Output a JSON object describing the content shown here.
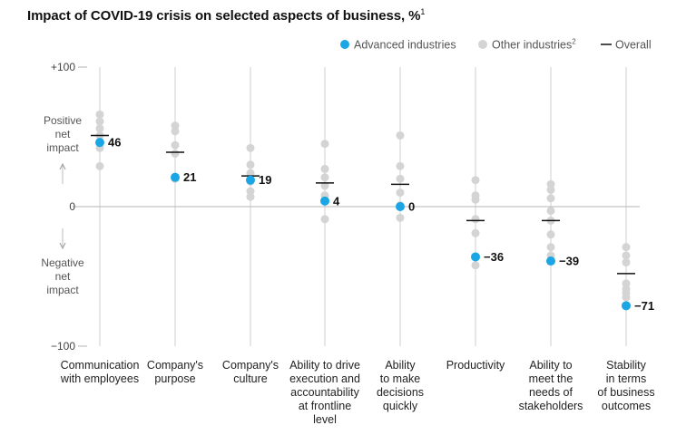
{
  "chart_data": {
    "type": "scatter",
    "title": "Impact of COVID-19 crisis on selected aspects of business, %",
    "title_note": "1",
    "legend": [
      {
        "label": "Advanced industries",
        "color": "#1aa6e4",
        "marker": "dot"
      },
      {
        "label": "Other industries",
        "note": "2",
        "color": "#d4d4d4",
        "marker": "dot"
      },
      {
        "label": "Overall",
        "color": "#111111",
        "marker": "line"
      }
    ],
    "legend_position": "top-right",
    "y_ticks": [
      {
        "value": 100,
        "label": "+100"
      },
      {
        "value": 0,
        "label": "0"
      },
      {
        "value": -100,
        "label": "−100"
      }
    ],
    "ylim": [
      -100,
      100
    ],
    "y_annotation_positive": [
      "Positive",
      "net",
      "impact"
    ],
    "y_annotation_negative": [
      "Negative",
      "net",
      "impact"
    ],
    "grid": "vertical category lines and zero baseline",
    "categories": [
      {
        "label": [
          "Communication",
          "with employees"
        ],
        "advanced": 46,
        "advanced_label": "46",
        "overall": 51,
        "other": [
          66,
          61,
          56,
          51,
          42,
          29
        ]
      },
      {
        "label": [
          "Company's",
          "purpose"
        ],
        "advanced": 21,
        "advanced_label": "21",
        "overall": 39,
        "other": [
          58,
          54,
          44,
          38,
          20
        ]
      },
      {
        "label": [
          "Company's",
          "culture"
        ],
        "advanced": 19,
        "advanced_label": "19",
        "overall": 22,
        "other": [
          42,
          30,
          24,
          18,
          11,
          7
        ]
      },
      {
        "label": [
          "Ability to drive",
          "execution and",
          "accountability",
          "at frontline",
          "level"
        ],
        "advanced": 4,
        "advanced_label": "4",
        "overall": 17,
        "other": [
          45,
          27,
          21,
          15,
          8,
          -9
        ]
      },
      {
        "label": [
          "Ability",
          "to make",
          "decisions",
          "quickly"
        ],
        "advanced": 0,
        "advanced_label": "0",
        "overall": 16,
        "other": [
          51,
          29,
          20,
          10,
          1,
          -8
        ]
      },
      {
        "label": [
          "Productivity"
        ],
        "advanced": -36,
        "advanced_label": "−36",
        "overall": -10,
        "other": [
          19,
          8,
          5,
          -9,
          -19,
          -36,
          -42
        ]
      },
      {
        "label": [
          "Ability to",
          "meet the",
          "needs of",
          "stakeholders"
        ],
        "advanced": -39,
        "advanced_label": "−39",
        "overall": -10,
        "other": [
          16,
          12,
          6,
          -3,
          -10,
          -20,
          -29,
          -35
        ]
      },
      {
        "label": [
          "Stability",
          "in terms",
          "of business",
          "outcomes"
        ],
        "advanced": -71,
        "advanced_label": "−71",
        "overall": -48,
        "other": [
          -29,
          -35,
          -40,
          -55,
          -59,
          -62,
          -65,
          -71
        ]
      }
    ]
  }
}
